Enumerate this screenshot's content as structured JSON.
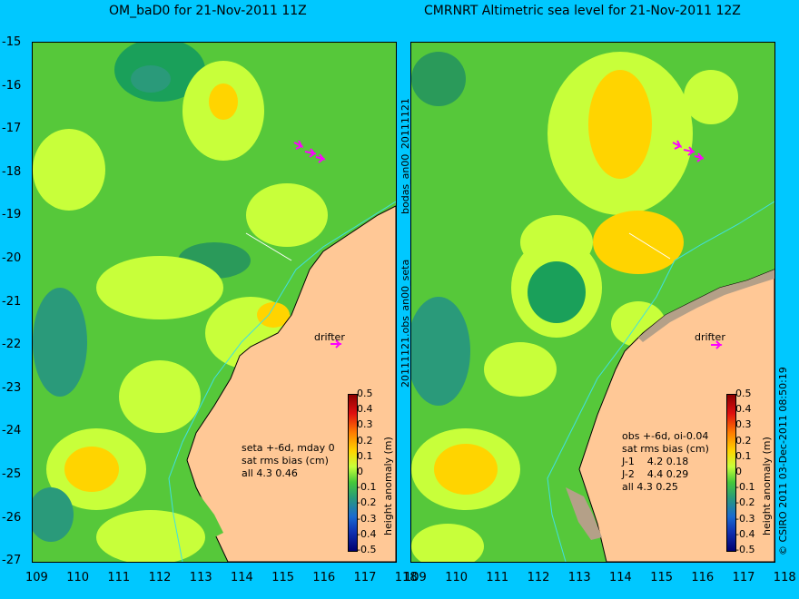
{
  "panels": {
    "left": {
      "title": "OM_baD0 for 21-Nov-2011 11Z",
      "stats": [
        "seta +-6d, mday 0",
        "sat rms bias (cm)",
        "all 4.3 0.46"
      ]
    },
    "right": {
      "title": "CMRNRT Altimetric sea level  for 21-Nov-2011 12Z",
      "stats": [
        "obs +-6d, oi-0.04",
        "sat rms bias (cm)",
        "J-1    4.2 0.18",
        "J-2    4.4 0.29",
        "all 4.3 0.25"
      ]
    }
  },
  "axes": {
    "lat_ticks": [
      "-15",
      "-16",
      "-17",
      "-18",
      "-19",
      "-20",
      "-21",
      "-22",
      "-23",
      "-24",
      "-25",
      "-26",
      "-27"
    ],
    "lon_ticks_left": [
      "109",
      "110",
      "111",
      "112",
      "113",
      "114",
      "115",
      "116",
      "117",
      "118"
    ],
    "lon_ticks_right": [
      "109",
      "110",
      "111",
      "112",
      "113",
      "114",
      "115",
      "116",
      "117",
      "118"
    ]
  },
  "colorbar": {
    "label": "height anomaly (m)",
    "ticks": [
      "0.5",
      "0.4",
      "0.3",
      "0.2",
      "0.1",
      "0",
      "-0.1",
      "-0.2",
      "-0.3",
      "-0.4",
      "-0.5"
    ]
  },
  "labels": {
    "drifter": "drifter",
    "file_text": "20111121.obs_an00_seta",
    "file_text2": "bodas_an00_20111121",
    "credit": "© CSIRO 2011   03-Dec-2011 08:50:19"
  },
  "colors": {
    "background": "#00c8ff",
    "land": "#ffc896",
    "sea": "#56c83a",
    "arrows": "#ff00ff"
  }
}
